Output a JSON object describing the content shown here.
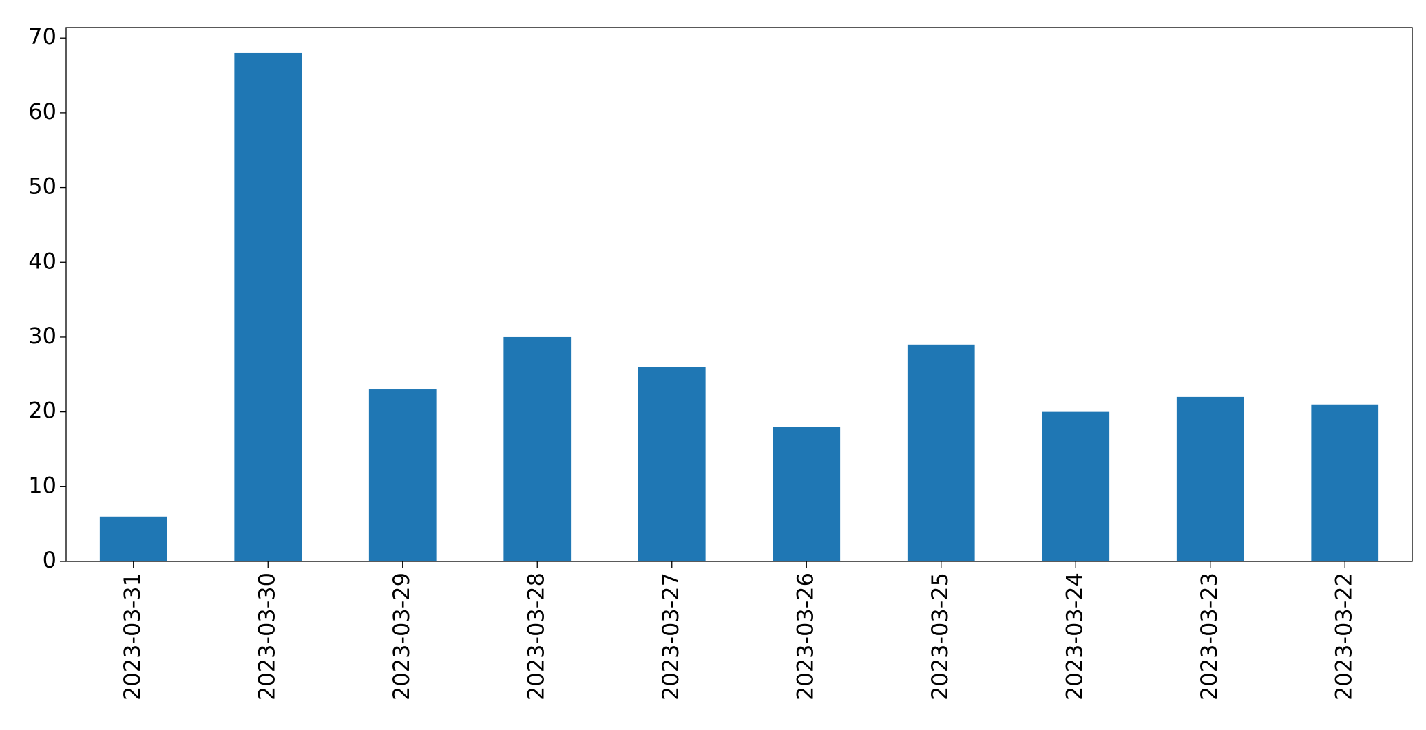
{
  "chart_data": {
    "type": "bar",
    "categories": [
      "2023-03-31",
      "2023-03-30",
      "2023-03-29",
      "2023-03-28",
      "2023-03-27",
      "2023-03-26",
      "2023-03-25",
      "2023-03-24",
      "2023-03-23",
      "2023-03-22"
    ],
    "values": [
      6,
      68,
      23,
      30,
      26,
      18,
      29,
      20,
      22,
      21
    ],
    "color": "#1f77b4",
    "ylim": [
      0,
      71.4
    ],
    "yticks": [
      0,
      10,
      20,
      30,
      40,
      50,
      60,
      70
    ],
    "grid": false
  }
}
